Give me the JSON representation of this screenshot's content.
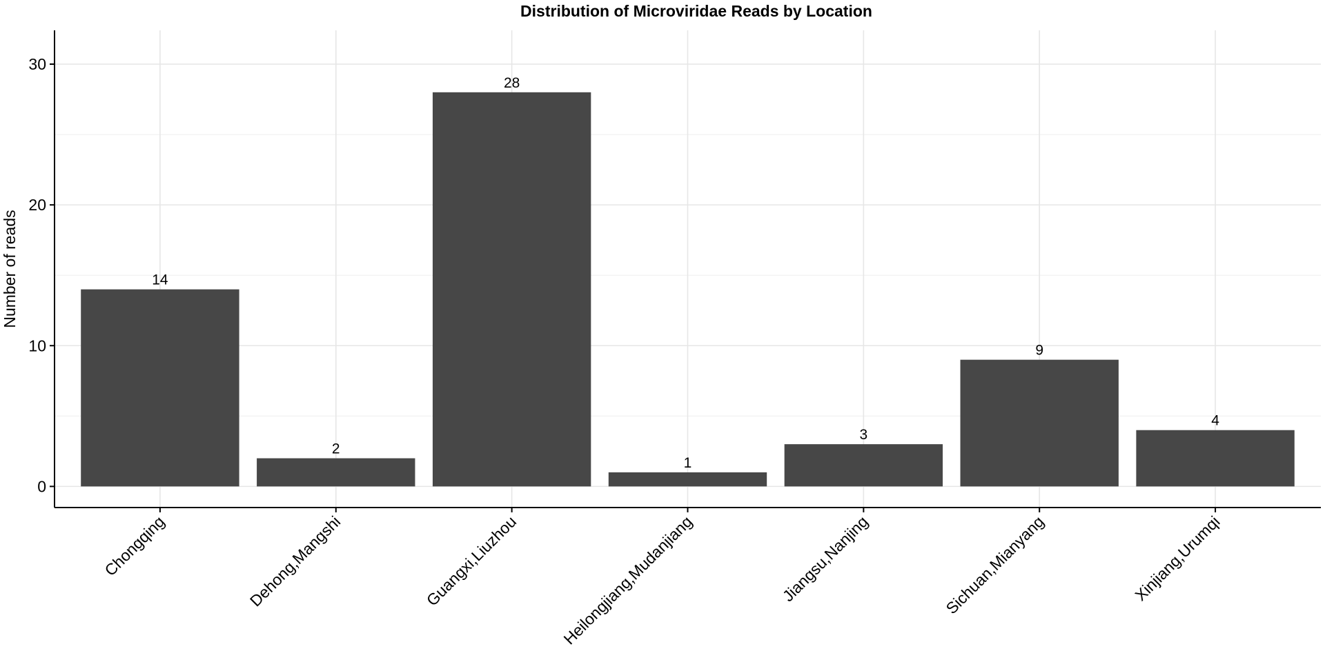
{
  "chart_data": {
    "type": "bar",
    "title": "Distribution of Microviridae Reads by Location",
    "xlabel": "",
    "ylabel": "Number of reads",
    "categories": [
      "Chongqing",
      "Dehong,Mangshi",
      "Guangxi,Liuzhou",
      "Heilongjiang,Mudanjiang",
      "Jiangsu,Nanjing",
      "Sichuan,Mianyang",
      "Xinjiang,Urumqi"
    ],
    "values": [
      14,
      2,
      28,
      1,
      3,
      9,
      4
    ],
    "data_labels": [
      "14",
      "2",
      "28",
      "1",
      "3",
      "9",
      "4"
    ],
    "ylim": [
      -1.5,
      32.4
    ],
    "yticks": [
      0,
      10,
      20,
      30
    ],
    "ytick_labels": [
      "0",
      "10",
      "20",
      "30"
    ],
    "grid": true,
    "legend": "none",
    "colors": {
      "bar": "#474747",
      "grid_major": "#e6e6e6",
      "grid_minor": "#f0f0f0",
      "axis": "#000000"
    }
  }
}
